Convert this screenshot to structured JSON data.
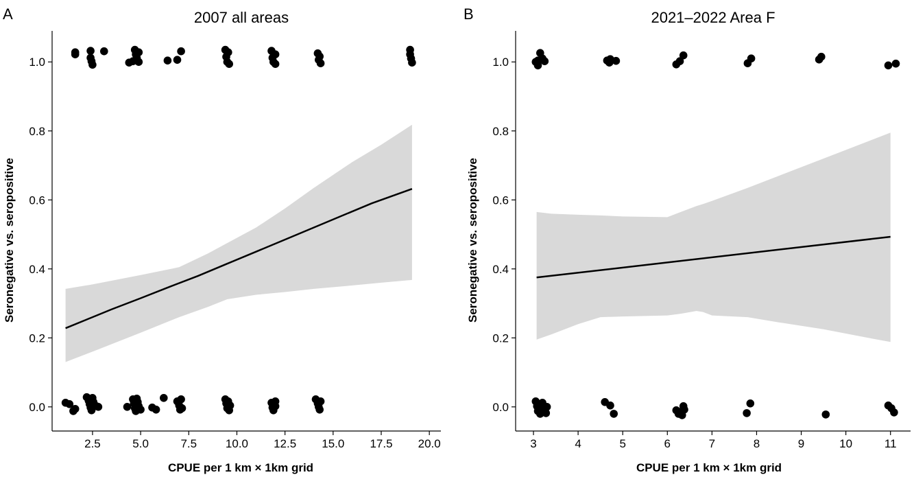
{
  "chart_data": [
    {
      "type": "scatter",
      "panel_letter": "A",
      "title": "2007 all areas",
      "xlabel": "CPUE per 1 km × 1km grid",
      "ylabel": "Seronegative vs. seropositive",
      "xlim": [
        0.4,
        20.6
      ],
      "ylim": [
        -0.07,
        1.09
      ],
      "xticks": [
        "2.5",
        "5.0",
        "7.5",
        "10.0",
        "12.5",
        "15.0",
        "17.5",
        "20.0"
      ],
      "xtick_values": [
        2.5,
        5.0,
        7.5,
        10.0,
        12.5,
        15.0,
        17.5,
        20.0
      ],
      "yticks": [
        "0.0",
        "0.2",
        "0.4",
        "0.6",
        "0.8",
        "1.0"
      ],
      "ytick_values": [
        0.0,
        0.2,
        0.4,
        0.6,
        0.8,
        1.0
      ],
      "grid": false,
      "fit_line": {
        "x": [
          1.1,
          2.5,
          3.5,
          5,
          6.5,
          8,
          9.5,
          11,
          12.5,
          14,
          15.5,
          17,
          19.1
        ],
        "y": [
          0.228,
          0.26,
          0.283,
          0.315,
          0.348,
          0.38,
          0.415,
          0.45,
          0.485,
          0.52,
          0.555,
          0.59,
          0.632
        ]
      },
      "ci_band": {
        "x": [
          1.1,
          2.5,
          5,
          7,
          8.5,
          9.5,
          11,
          12.5,
          14,
          16,
          17.5,
          19.1
        ],
        "lower": [
          0.13,
          0.16,
          0.215,
          0.26,
          0.29,
          0.312,
          0.325,
          0.333,
          0.342,
          0.352,
          0.36,
          0.368
        ],
        "upper": [
          0.342,
          0.355,
          0.382,
          0.405,
          0.445,
          0.475,
          0.52,
          0.575,
          0.635,
          0.71,
          0.76,
          0.818
        ]
      },
      "points": [
        {
          "x": 1.6,
          "y": 1.022
        },
        {
          "x": 1.6,
          "y": 1.028
        },
        {
          "x": 2.4,
          "y": 1.032
        },
        {
          "x": 2.4,
          "y": 1.012
        },
        {
          "x": 2.45,
          "y": 1.002
        },
        {
          "x": 2.5,
          "y": 0.992
        },
        {
          "x": 3.1,
          "y": 1.031
        },
        {
          "x": 4.4,
          "y": 0.998
        },
        {
          "x": 4.6,
          "y": 1.002
        },
        {
          "x": 4.7,
          "y": 1.035
        },
        {
          "x": 4.75,
          "y": 1.022
        },
        {
          "x": 4.8,
          "y": 1.012
        },
        {
          "x": 4.9,
          "y": 1.028
        },
        {
          "x": 4.9,
          "y": 1.0
        },
        {
          "x": 6.4,
          "y": 1.004
        },
        {
          "x": 6.9,
          "y": 1.006
        },
        {
          "x": 7.1,
          "y": 1.031
        },
        {
          "x": 9.4,
          "y": 1.035
        },
        {
          "x": 9.45,
          "y": 1.015
        },
        {
          "x": 9.5,
          "y": 1.0
        },
        {
          "x": 9.55,
          "y": 1.028
        },
        {
          "x": 9.6,
          "y": 0.994
        },
        {
          "x": 11.8,
          "y": 1.032
        },
        {
          "x": 11.85,
          "y": 1.012
        },
        {
          "x": 11.9,
          "y": 1.0
        },
        {
          "x": 12.0,
          "y": 1.022
        },
        {
          "x": 12.0,
          "y": 0.994
        },
        {
          "x": 14.2,
          "y": 1.025
        },
        {
          "x": 14.25,
          "y": 1.006
        },
        {
          "x": 14.35,
          "y": 0.996
        },
        {
          "x": 14.3,
          "y": 1.016
        },
        {
          "x": 19.0,
          "y": 1.035
        },
        {
          "x": 19.0,
          "y": 1.022
        },
        {
          "x": 19.05,
          "y": 1.01
        },
        {
          "x": 19.1,
          "y": 0.998
        },
        {
          "x": 1.1,
          "y": 0.012
        },
        {
          "x": 1.3,
          "y": 0.008
        },
        {
          "x": 1.5,
          "y": -0.012
        },
        {
          "x": 1.6,
          "y": -0.006
        },
        {
          "x": 2.2,
          "y": 0.028
        },
        {
          "x": 2.3,
          "y": 0.018
        },
        {
          "x": 2.35,
          "y": 0.008
        },
        {
          "x": 2.4,
          "y": -0.002
        },
        {
          "x": 2.45,
          "y": -0.01
        },
        {
          "x": 2.5,
          "y": 0.026
        },
        {
          "x": 2.55,
          "y": 0.014
        },
        {
          "x": 2.7,
          "y": 0.002
        },
        {
          "x": 2.8,
          "y": 0.0
        },
        {
          "x": 4.3,
          "y": 0.0
        },
        {
          "x": 4.6,
          "y": 0.022
        },
        {
          "x": 4.65,
          "y": 0.01
        },
        {
          "x": 4.7,
          "y": -0.004
        },
        {
          "x": 4.75,
          "y": -0.012
        },
        {
          "x": 4.8,
          "y": 0.024
        },
        {
          "x": 4.85,
          "y": 0.014
        },
        {
          "x": 4.9,
          "y": 0.002
        },
        {
          "x": 5.0,
          "y": -0.008
        },
        {
          "x": 5.6,
          "y": -0.002
        },
        {
          "x": 5.8,
          "y": -0.008
        },
        {
          "x": 6.2,
          "y": 0.026
        },
        {
          "x": 6.9,
          "y": 0.016
        },
        {
          "x": 7.0,
          "y": 0.004
        },
        {
          "x": 7.05,
          "y": -0.008
        },
        {
          "x": 7.1,
          "y": 0.022
        },
        {
          "x": 7.15,
          "y": -0.004
        },
        {
          "x": 9.4,
          "y": 0.022
        },
        {
          "x": 9.45,
          "y": 0.01
        },
        {
          "x": 9.5,
          "y": -0.004
        },
        {
          "x": 9.55,
          "y": 0.016
        },
        {
          "x": 9.6,
          "y": -0.01
        },
        {
          "x": 9.65,
          "y": 0.004
        },
        {
          "x": 11.8,
          "y": 0.012
        },
        {
          "x": 11.85,
          "y": -0.002
        },
        {
          "x": 11.9,
          "y": -0.01
        },
        {
          "x": 12.0,
          "y": 0.016
        },
        {
          "x": 12.0,
          "y": 0.002
        },
        {
          "x": 14.1,
          "y": 0.022
        },
        {
          "x": 14.2,
          "y": 0.01
        },
        {
          "x": 14.25,
          "y": 0.0
        },
        {
          "x": 14.3,
          "y": -0.008
        },
        {
          "x": 14.35,
          "y": 0.016
        }
      ]
    },
    {
      "type": "scatter",
      "panel_letter": "B",
      "title": "2021–2022 Area F",
      "xlabel": "CPUE per 1 km × 1km grid",
      "ylabel": "Seronegative vs. seropositive",
      "xlim": [
        2.6,
        11.45
      ],
      "ylim": [
        -0.07,
        1.09
      ],
      "xticks": [
        "3",
        "4",
        "5",
        "6",
        "7",
        "8",
        "9",
        "10",
        "11"
      ],
      "xtick_values": [
        3,
        4,
        5,
        6,
        7,
        8,
        9,
        10,
        11
      ],
      "yticks": [
        "0.0",
        "0.2",
        "0.4",
        "0.6",
        "0.8",
        "1.0"
      ],
      "ytick_values": [
        0.0,
        0.2,
        0.4,
        0.6,
        0.8,
        1.0
      ],
      "grid": false,
      "fit_line": {
        "x": [
          3.07,
          11.0
        ],
        "y": [
          0.375,
          0.493
        ]
      },
      "ci_band": {
        "x": [
          3.07,
          3.4,
          4.0,
          4.5,
          5.0,
          6.0,
          6.3,
          6.65,
          6.8,
          7.0,
          7.8,
          8.5,
          9.5,
          10.3,
          11.0
        ],
        "lower": [
          0.195,
          0.21,
          0.24,
          0.26,
          0.262,
          0.265,
          0.27,
          0.278,
          0.275,
          0.265,
          0.26,
          0.245,
          0.225,
          0.205,
          0.188
        ],
        "upper": [
          0.565,
          0.56,
          0.557,
          0.555,
          0.552,
          0.55,
          0.565,
          0.582,
          0.588,
          0.597,
          0.635,
          0.67,
          0.72,
          0.76,
          0.795
        ]
      },
      "points": [
        {
          "x": 3.05,
          "y": 1.0
        },
        {
          "x": 3.1,
          "y": 0.99
        },
        {
          "x": 3.1,
          "y": 1.004
        },
        {
          "x": 3.15,
          "y": 1.026
        },
        {
          "x": 3.2,
          "y": 1.01
        },
        {
          "x": 3.25,
          "y": 1.002
        },
        {
          "x": 4.65,
          "y": 1.004
        },
        {
          "x": 4.7,
          "y": 0.998
        },
        {
          "x": 4.72,
          "y": 1.008
        },
        {
          "x": 4.85,
          "y": 1.003
        },
        {
          "x": 6.2,
          "y": 0.993
        },
        {
          "x": 6.28,
          "y": 1.002
        },
        {
          "x": 6.36,
          "y": 1.019
        },
        {
          "x": 7.8,
          "y": 0.996
        },
        {
          "x": 7.88,
          "y": 1.01
        },
        {
          "x": 9.4,
          "y": 1.007
        },
        {
          "x": 9.45,
          "y": 1.015
        },
        {
          "x": 10.95,
          "y": 0.99
        },
        {
          "x": 11.12,
          "y": 0.995
        },
        {
          "x": 3.05,
          "y": 0.016
        },
        {
          "x": 3.08,
          "y": 0.002
        },
        {
          "x": 3.1,
          "y": -0.012
        },
        {
          "x": 3.12,
          "y": -0.006
        },
        {
          "x": 3.15,
          "y": -0.02
        },
        {
          "x": 3.2,
          "y": 0.012
        },
        {
          "x": 3.22,
          "y": 0.004
        },
        {
          "x": 3.25,
          "y": -0.01
        },
        {
          "x": 3.28,
          "y": -0.018
        },
        {
          "x": 3.3,
          "y": 0.0
        },
        {
          "x": 4.6,
          "y": 0.014
        },
        {
          "x": 4.72,
          "y": 0.004
        },
        {
          "x": 4.8,
          "y": -0.02
        },
        {
          "x": 6.2,
          "y": -0.01
        },
        {
          "x": 6.25,
          "y": -0.02
        },
        {
          "x": 6.3,
          "y": -0.014
        },
        {
          "x": 6.33,
          "y": -0.024
        },
        {
          "x": 6.36,
          "y": 0.002
        },
        {
          "x": 6.38,
          "y": -0.008
        },
        {
          "x": 7.78,
          "y": -0.018
        },
        {
          "x": 7.86,
          "y": 0.01
        },
        {
          "x": 9.55,
          "y": -0.022
        },
        {
          "x": 10.95,
          "y": 0.004
        },
        {
          "x": 11.02,
          "y": -0.004
        },
        {
          "x": 11.08,
          "y": -0.016
        }
      ]
    }
  ]
}
